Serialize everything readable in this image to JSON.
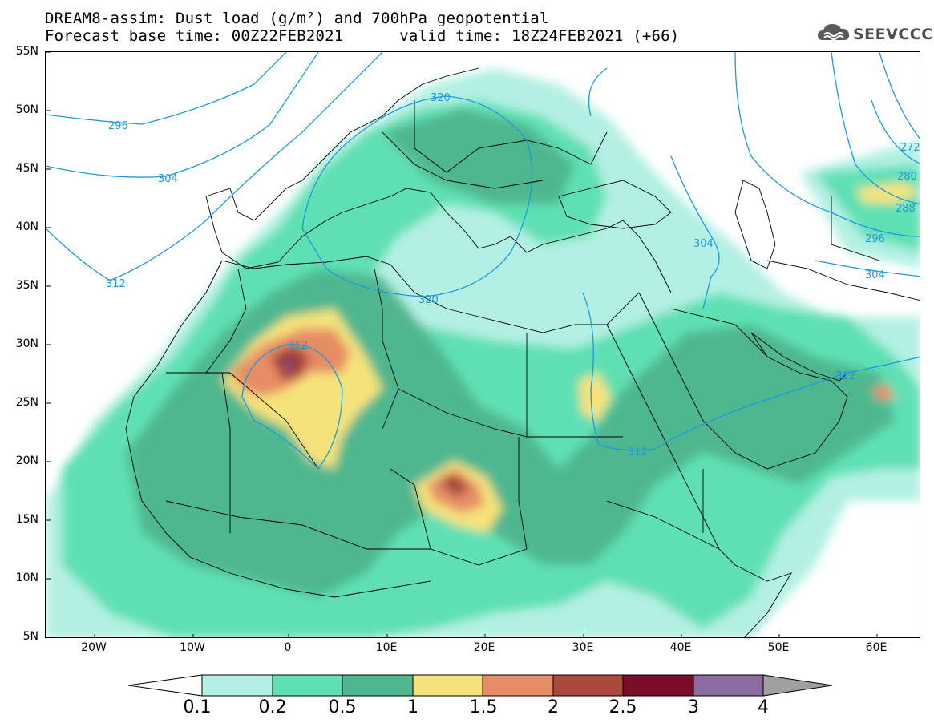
{
  "title": {
    "line1": "DREAM8-assim: Dust load (g/m²) and 700hPa geopotential",
    "line2": "Forecast base time: 00Z22FEB2021      valid time: 18Z24FEB2021 (+66)"
  },
  "logo": {
    "text": "SEEVCCC",
    "icon": "cloud-logo-icon"
  },
  "axes": {
    "lat_labels": [
      "55N",
      "50N",
      "45N",
      "40N",
      "35N",
      "30N",
      "25N",
      "20N",
      "15N",
      "10N",
      "5N"
    ],
    "lon_labels": [
      "20W",
      "10W",
      "0",
      "10E",
      "20E",
      "30E",
      "40E",
      "50E",
      "60E"
    ]
  },
  "contours": {
    "labels": [
      "296",
      "304",
      "312",
      "320",
      "320",
      "312",
      "312",
      "304",
      "296",
      "288",
      "280",
      "272",
      "304",
      "312"
    ]
  },
  "colorbar": {
    "levels": [
      "0.1",
      "0.2",
      "0.5",
      "1",
      "1.5",
      "2",
      "2.5",
      "3",
      "4"
    ],
    "colors": [
      "#b3f0e3",
      "#5ee0b4",
      "#4fb78f",
      "#f5e27a",
      "#e78d65",
      "#aa4a3d",
      "#7c0d2a",
      "#8b6ca0"
    ],
    "under_color": "#ffffff",
    "over_color": "#a0a0a0"
  },
  "colors": {
    "contour": "#1a9be0",
    "border": "#000000"
  }
}
